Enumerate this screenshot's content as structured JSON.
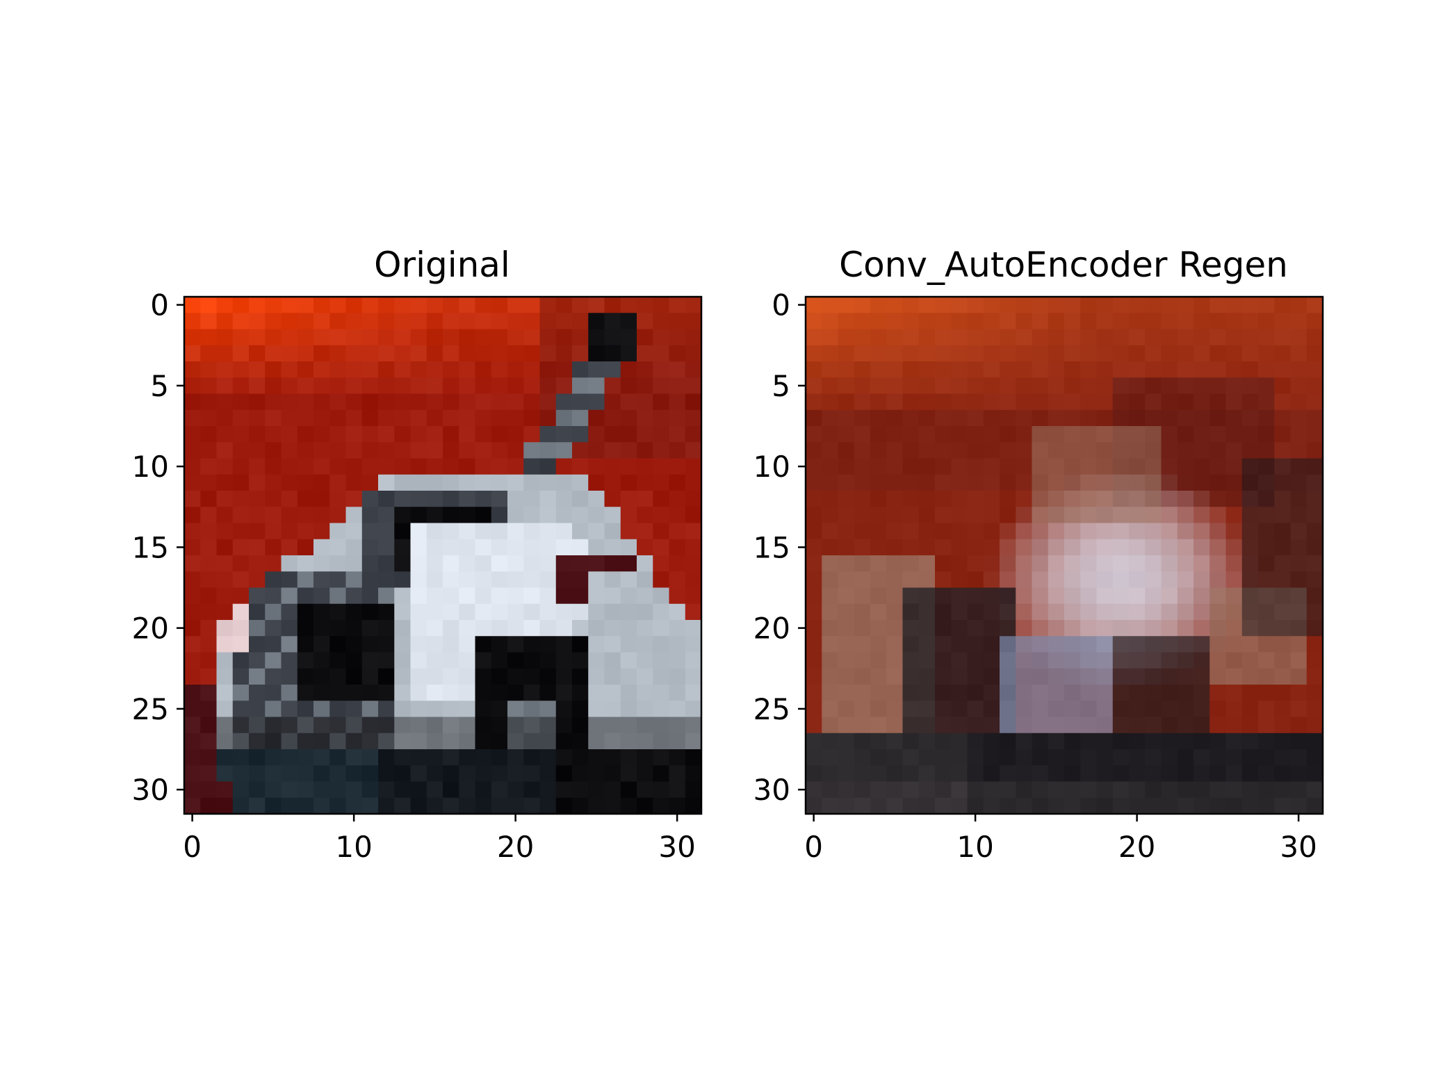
{
  "figure": {
    "panels": [
      {
        "title": "Original",
        "x_ticks": [
          "0",
          "10",
          "20",
          "30"
        ],
        "y_ticks": [
          "0",
          "5",
          "10",
          "15",
          "20",
          "25",
          "30"
        ],
        "image": {
          "grid_size": [
            32,
            32
          ],
          "palette": {
            "bg": "#9d1b0d",
            "bright_red": "#f8440a",
            "dark_red": "#6e1712",
            "white": "#dde4ee",
            "light_gray": "#b3bcc5",
            "gray": "#6f7780",
            "dark_gray": "#3b3f47",
            "black": "#0d0d10",
            "dark_blue": "#233642",
            "maroon": "#4a0f14",
            "pink": "#e6cdd0"
          },
          "description": "small car photograph, white car on red background"
        }
      },
      {
        "title": "Conv_AutoEncoder Regen",
        "x_ticks": [
          "0",
          "10",
          "20",
          "30"
        ],
        "y_ticks": [
          "0",
          "5",
          "10",
          "15",
          "20",
          "25",
          "30"
        ],
        "image": {
          "grid_size": [
            32,
            32
          ],
          "palette": {
            "bg": "#8a2412",
            "orange": "#d9541c",
            "dark_red": "#611a14",
            "light": "#d3cedb",
            "blue_gray": "#7e8fb2",
            "tan": "#9a7362",
            "dark": "#1c1c22",
            "black": "#0f0f14",
            "gray": "#4a4447"
          }
        }
      }
    ]
  }
}
